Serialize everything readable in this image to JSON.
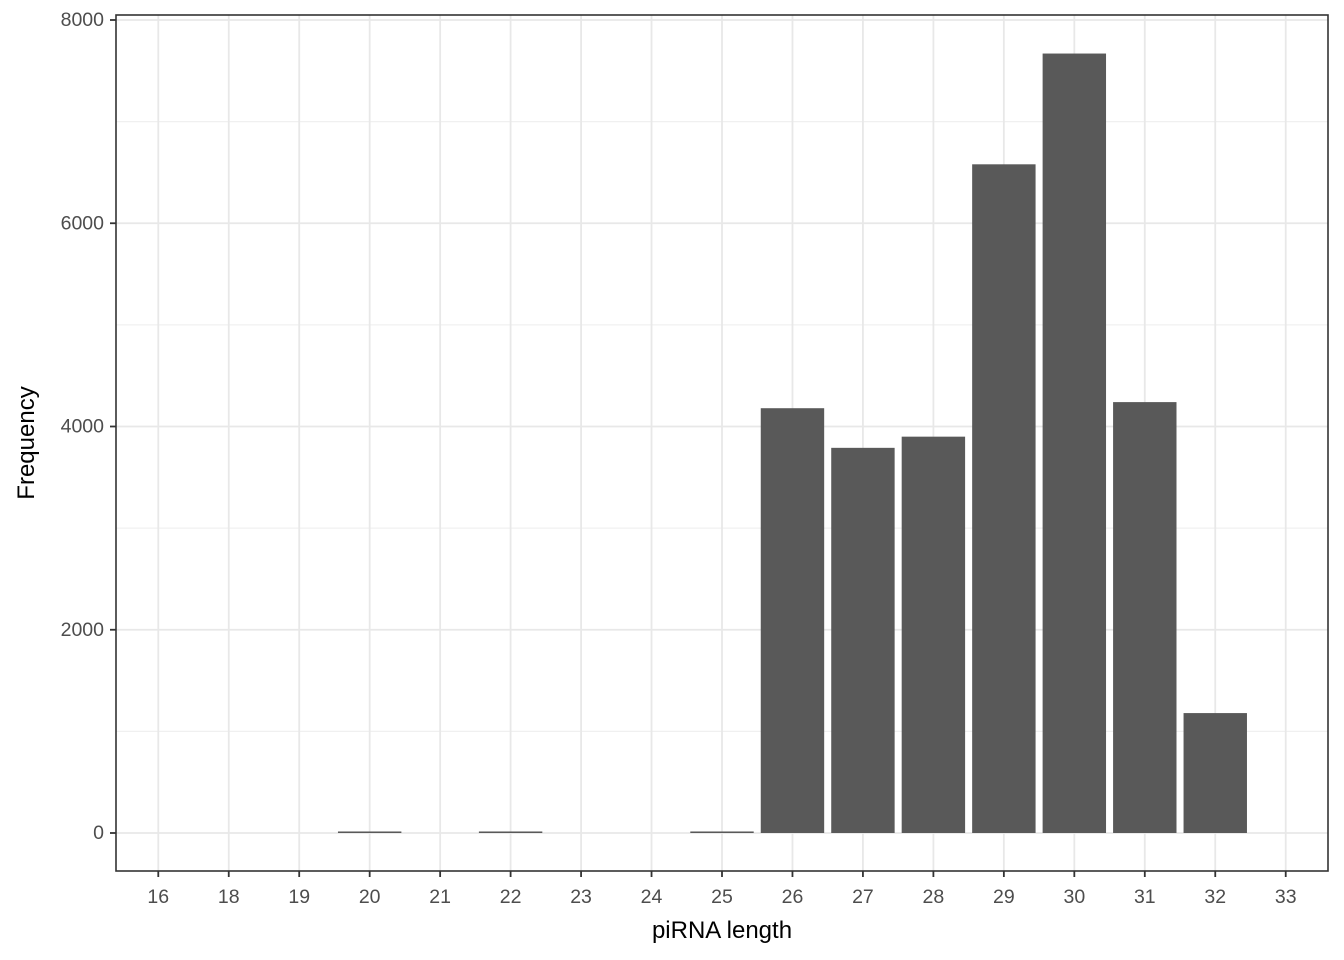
{
  "figure": {
    "background_color": "#ffffff",
    "panel_background_color": "#ffffff",
    "panel_border_color": "#333333",
    "grid_major_color": "#e8e8e8",
    "grid_minor_color": "#f0f0f0",
    "bar_fill_color": "#595959",
    "tick_mark_color": "#333333",
    "tick_label_color": "#4d4d4d",
    "axis_title_color": "#000000"
  },
  "chart_data": {
    "type": "bar",
    "title": "",
    "xlabel": "piRNA length",
    "ylabel": "Frequency",
    "categories": [
      "16",
      "18",
      "19",
      "20",
      "21",
      "22",
      "23",
      "24",
      "25",
      "26",
      "27",
      "28",
      "29",
      "30",
      "31",
      "32",
      "33"
    ],
    "values": [
      0,
      0,
      0,
      15,
      0,
      15,
      0,
      0,
      15,
      4180,
      3790,
      3900,
      6580,
      7670,
      4240,
      1180,
      0
    ],
    "y_ticks": [
      0,
      2000,
      4000,
      6000,
      8000
    ],
    "y_tick_labels": [
      "0",
      "2000",
      "4000",
      "6000",
      "8000"
    ],
    "y_minor_ticks": [
      1000,
      3000,
      5000,
      7000
    ],
    "ylim": [
      -375,
      8050
    ],
    "bar_width_fraction": 0.9,
    "grid": "horizontal major+minor, vertical major at each category",
    "legend": "none",
    "orientation": "vertical"
  }
}
